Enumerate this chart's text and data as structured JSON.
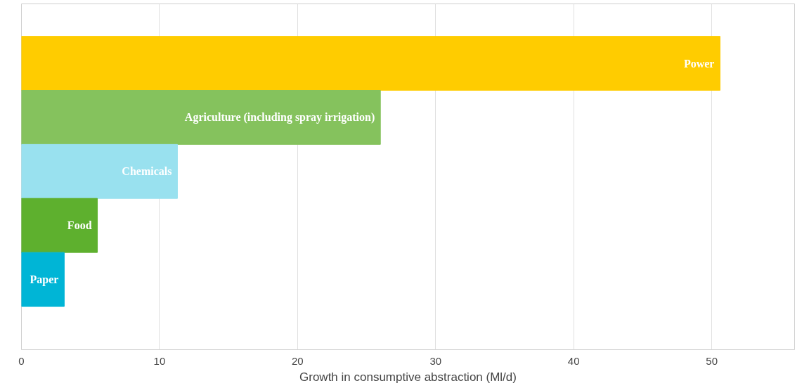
{
  "chart_data": {
    "type": "bar",
    "orientation": "horizontal",
    "categories": [
      "Power",
      "Agriculture (including spray irrigation)",
      "Chemicals",
      "Food",
      "Paper"
    ],
    "values": [
      50.6,
      26.0,
      11.3,
      5.5,
      3.1
    ],
    "colors": [
      "#ffcc00",
      "#85c25d",
      "#99e1ef",
      "#5eb02e",
      "#00b5d6"
    ],
    "xlabel": "Growth in consumptive abstraction (Ml/d)",
    "xlim": [
      0,
      56
    ],
    "xticks": [
      0,
      10,
      20,
      30,
      40,
      50
    ],
    "grid": "x",
    "tick_labels": "x"
  }
}
